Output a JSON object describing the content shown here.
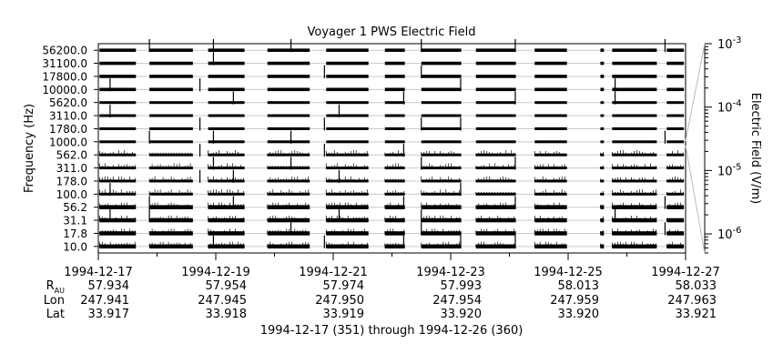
{
  "chart_data": {
    "type": "spectrogram",
    "title": "Voyager 1 PWS Electric Field",
    "ylabel": "Frequency (Hz)",
    "colorbar_label": "Electric Field (V/m)",
    "xlabel": "1994-12-17 (351) through 1994-12-26 (360)",
    "frequency_channels": [
      "10.0",
      "17.8",
      "31.1",
      "56.2",
      "100.0",
      "178.0",
      "311.0",
      "562.0",
      "1000.0",
      "1780.0",
      "3110.0",
      "5620.0",
      "10000.0",
      "17800.0",
      "31100.0",
      "56200.0"
    ],
    "x_range_days": [
      0,
      10
    ],
    "x_ticks": [
      {
        "day": 0,
        "date": "1994-12-17",
        "rau": "57.934",
        "lon": "247.941",
        "lat": "33.917"
      },
      {
        "day": 2,
        "date": "1994-12-19",
        "rau": "57.954",
        "lon": "247.945",
        "lat": "33.918"
      },
      {
        "day": 4,
        "date": "1994-12-21",
        "rau": "57.974",
        "lon": "247.950",
        "lat": "33.919"
      },
      {
        "day": 6,
        "date": "1994-12-23",
        "rau": "57.993",
        "lon": "247.954",
        "lat": "33.920"
      },
      {
        "day": 8,
        "date": "1994-12-25",
        "rau": "58.013",
        "lon": "247.959",
        "lat": "33.920"
      },
      {
        "day": 10,
        "date": "1994-12-27",
        "rau": "58.033",
        "lon": "247.963",
        "lat": "33.921"
      }
    ],
    "ephemeris_labels": {
      "rau_main": "R",
      "rau_sub": "AU",
      "lon": "Lon",
      "lat": "Lat"
    },
    "colorbar": {
      "scale": "log",
      "range": [
        5e-07,
        0.001
      ],
      "ticks": [
        {
          "value": 0.001,
          "base": "10",
          "exp": "-3"
        },
        {
          "value": 0.0001,
          "base": "10",
          "exp": "-4"
        },
        {
          "value": 1e-05,
          "base": "10",
          "exp": "-5"
        },
        {
          "value": 1e-06,
          "base": "10",
          "exp": "-6"
        }
      ]
    },
    "data_segments_days": [
      [
        0.02,
        0.64
      ],
      [
        0.87,
        1.61
      ],
      [
        1.87,
        2.49
      ],
      [
        2.88,
        3.6
      ],
      [
        3.88,
        4.6
      ],
      [
        4.88,
        5.22
      ],
      [
        5.5,
        6.18
      ],
      [
        6.43,
        7.11
      ],
      [
        7.43,
        7.98
      ],
      [
        8.55,
        8.61
      ],
      [
        8.75,
        9.51
      ],
      [
        9.68,
        9.97
      ]
    ],
    "spikes": [
      {
        "day": 0.2,
        "channels": [
          2,
          4,
          10,
          12
        ]
      },
      {
        "day": 0.87,
        "channels": [
          2,
          3,
          8,
          15
        ]
      },
      {
        "day": 1.73,
        "channels": [
          5,
          7,
          9,
          12
        ]
      },
      {
        "day": 1.96,
        "channels": [
          0,
          6,
          8,
          14,
          15
        ]
      },
      {
        "day": 2.3,
        "channels": [
          3,
          5,
          11
        ]
      },
      {
        "day": 3.28,
        "channels": [
          1,
          6,
          8,
          15
        ]
      },
      {
        "day": 3.85,
        "channels": [
          0,
          7,
          9,
          13
        ]
      },
      {
        "day": 4.1,
        "channels": [
          2,
          5,
          10
        ]
      },
      {
        "day": 5.2,
        "channels": [
          0,
          3,
          7,
          11
        ]
      },
      {
        "day": 5.5,
        "channels": [
          1,
          2,
          6,
          9,
          13,
          15
        ]
      },
      {
        "day": 6.17,
        "channels": [
          0,
          4,
          9,
          12
        ]
      },
      {
        "day": 7.1,
        "channels": [
          0,
          3,
          6,
          11,
          15
        ]
      },
      {
        "day": 8.8,
        "channels": [
          2,
          11,
          12
        ]
      },
      {
        "day": 9.65,
        "channels": [
          1,
          3,
          8,
          15
        ]
      }
    ]
  }
}
